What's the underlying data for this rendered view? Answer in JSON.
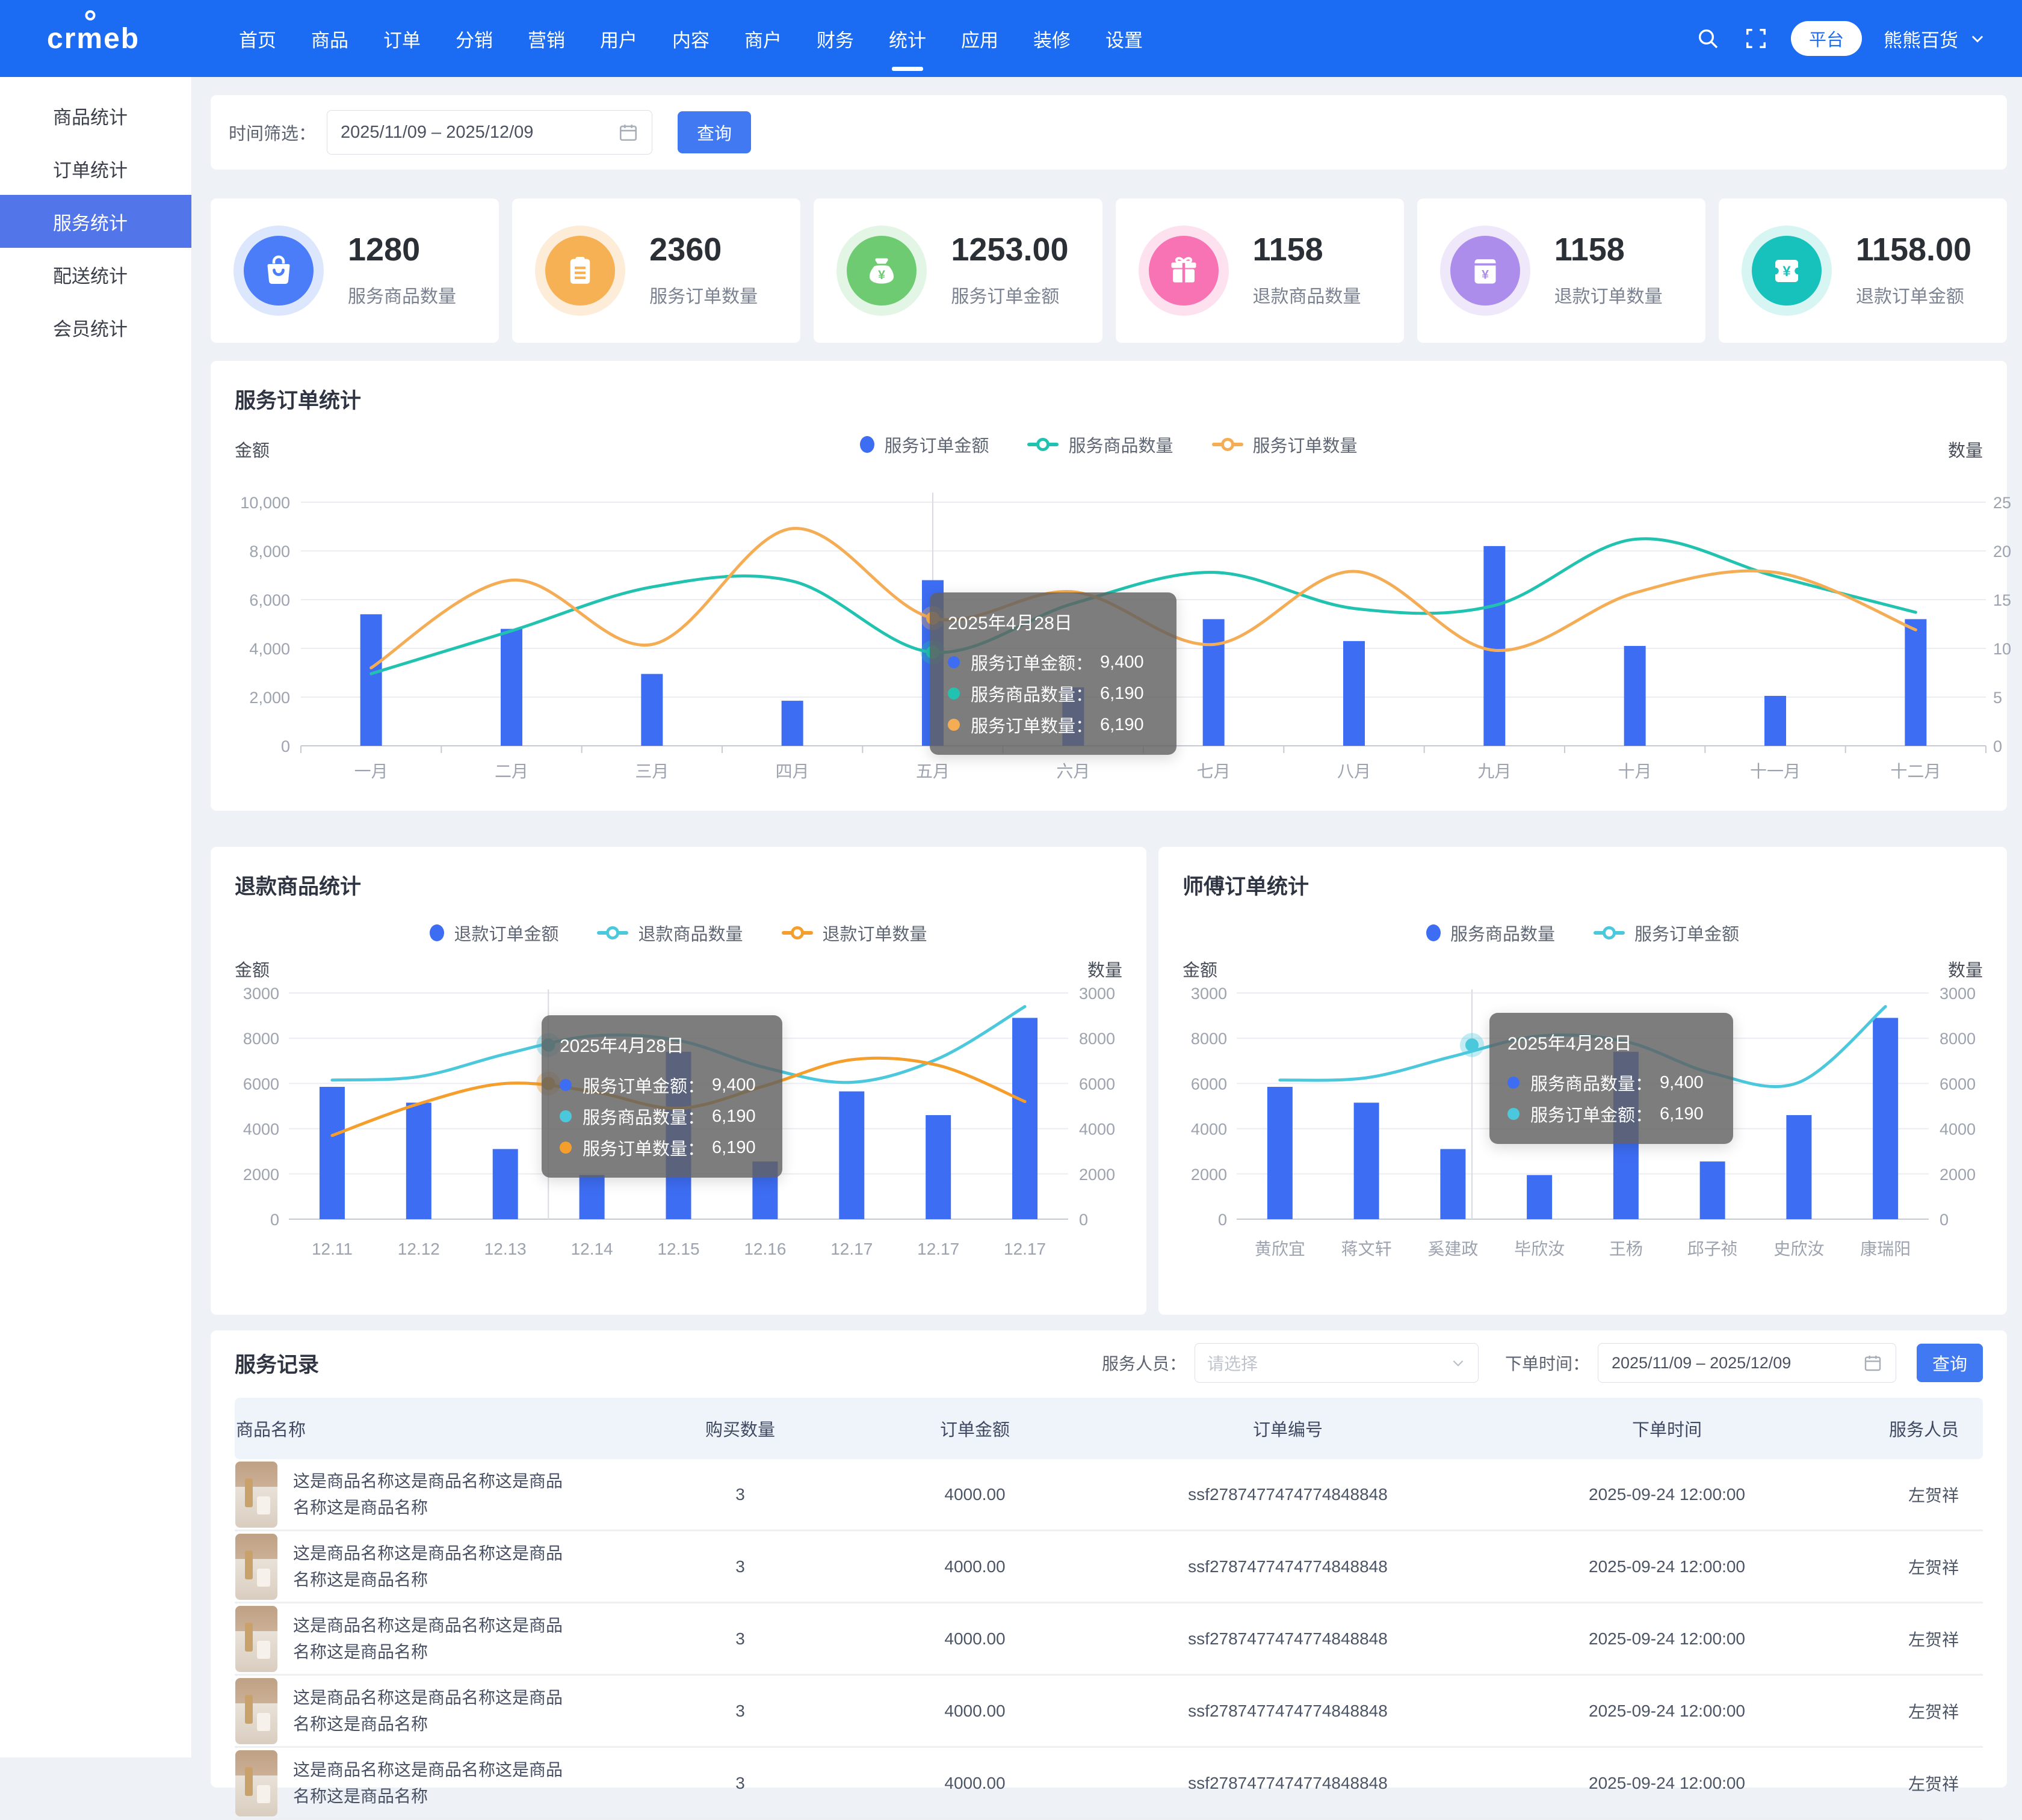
{
  "navbar": {
    "logo": "crmeb",
    "menu": [
      "首页",
      "商品",
      "订单",
      "分销",
      "营销",
      "用户",
      "内容",
      "商户",
      "财务",
      "统计",
      "应用",
      "装修",
      "设置"
    ],
    "active_item": "统计",
    "platform_badge": "平台",
    "account_name": "熊熊百货"
  },
  "sidebar": {
    "items": [
      "商品统计",
      "订单统计",
      "服务统计",
      "配送统计",
      "会员统计"
    ],
    "active_item": "服务统计"
  },
  "filter_bar": {
    "label": "时间筛选：",
    "date_range": "2025/11/09 – 2025/12/09",
    "query_label": "查询"
  },
  "stat_cards": [
    {
      "value": "1280",
      "label": "服务商品数量",
      "icon": "bag-icon",
      "color": "#4A7DF7",
      "ring": "#DCE7FD"
    },
    {
      "value": "2360",
      "label": "服务订单数量",
      "icon": "clipboard-icon",
      "color": "#F7B155",
      "ring": "#FDEDD8"
    },
    {
      "value": "1253.00",
      "label": "服务订单金额",
      "icon": "money-bag-icon",
      "color": "#6FCB72",
      "ring": "#E3F5E4"
    },
    {
      "value": "1158",
      "label": "退款商品数量",
      "icon": "gift-icon",
      "color": "#F773B4",
      "ring": "#FDE1EF"
    },
    {
      "value": "1158",
      "label": "退款订单数量",
      "icon": "receipt-icon",
      "color": "#AC8DEB",
      "ring": "#EFE8FB"
    },
    {
      "value": "1158.00",
      "label": "退款订单金额",
      "icon": "yen-ticket-icon",
      "color": "#17C2BC",
      "ring": "#D7F5F3"
    }
  ],
  "chart_data": [
    {
      "type": "bar",
      "title": "服务订单统计",
      "ylabel_left": "金额",
      "ylabel_right": "数量",
      "left_ticks": [
        "0",
        "2,000",
        "4,000",
        "6,000",
        "8,000",
        "10,000"
      ],
      "right_ticks": [
        "0",
        "5",
        "10",
        "15",
        "20",
        "25"
      ],
      "left_max": 10000,
      "right_max": 25,
      "categories": [
        "一月",
        "二月",
        "三月",
        "四月",
        "五月",
        "六月",
        "七月",
        "八月",
        "九月",
        "十月",
        "十一月",
        "十二月"
      ],
      "series": [
        {
          "name": "服务订单金额",
          "type": "bar",
          "axis": "left",
          "color": "#3D6DF3",
          "values": [
            5400,
            4800,
            2950,
            1850,
            6800,
            2400,
            5200,
            4300,
            8200,
            4100,
            2050,
            5200
          ]
        },
        {
          "name": "服务商品数量",
          "type": "line",
          "axis": "right",
          "color": "#21C3B0",
          "values": [
            7.4,
            11.8,
            16.3,
            16.9,
            9.6,
            14.6,
            17.8,
            14.1,
            14.4,
            21.2,
            17.4,
            13.7
          ]
        },
        {
          "name": "服务订单数量",
          "type": "line",
          "axis": "right",
          "color": "#F5AD55",
          "values": [
            8,
            17,
            10.4,
            22.3,
            13.1,
            15.8,
            10.4,
            17.9,
            9.8,
            15.7,
            17.8,
            11.9
          ]
        }
      ],
      "pointer": {
        "frac": 0.375,
        "markers": [
          {
            "color": "#F5AD55",
            "axis": "right",
            "value": 13.1
          },
          {
            "color": "#21C3B0",
            "axis": "right",
            "value": 9.6
          }
        ]
      },
      "tooltip": {
        "title": "2025年4月28日",
        "rows": [
          {
            "color": "#3D6DF3",
            "label": "服务订单金额",
            "value": "9,400"
          },
          {
            "color": "#21C3B0",
            "label": "服务商品数量",
            "value": "6,190"
          },
          {
            "color": "#F5AD55",
            "label": "服务订单数量",
            "value": "6,190"
          }
        ]
      }
    },
    {
      "type": "bar",
      "title": "退款商品统计",
      "ylabel_left": "金额",
      "ylabel_right": "数量",
      "left_ticks": [
        "0",
        "2000",
        "4000",
        "6000",
        "8000",
        "3000"
      ],
      "right_ticks": [
        "0",
        "2000",
        "4000",
        "6000",
        "8000",
        "3000"
      ],
      "left_max": 10000,
      "right_max": 10000,
      "categories": [
        "12.11",
        "12.12",
        "12.13",
        "12.14",
        "12.15",
        "12.16",
        "12.17",
        "12.17",
        "12.17"
      ],
      "series": [
        {
          "name": "退款订单金额",
          "type": "bar",
          "axis": "left",
          "color": "#3D6DF3",
          "values": [
            5850,
            5150,
            3100,
            1950,
            7400,
            2550,
            5650,
            4600,
            8900
          ]
        },
        {
          "name": "退款商品数量",
          "type": "line",
          "axis": "left",
          "color": "#4BC8DC",
          "values": [
            6150,
            6300,
            7300,
            8100,
            7900,
            6700,
            6050,
            7100,
            9400
          ]
        },
        {
          "name": "退款订单数量",
          "type": "line",
          "axis": "left",
          "color": "#F59E2B",
          "values": [
            3700,
            5100,
            6000,
            5650,
            4900,
            5900,
            7050,
            6800,
            5200
          ]
        }
      ],
      "pointer": {
        "frac": 0.333,
        "markers": [
          {
            "color": "#4BC8DC",
            "axis": "left",
            "value": 7700
          },
          {
            "color": "#F59E2B",
            "axis": "left",
            "value": 6000
          }
        ]
      },
      "tooltip": {
        "title": "2025年4月28日",
        "rows": [
          {
            "color": "#3D6DF3",
            "label": "服务订单金额",
            "value": "9,400"
          },
          {
            "color": "#4BC8DC",
            "label": "服务商品数量",
            "value": "6,190"
          },
          {
            "color": "#F59E2B",
            "label": "服务订单数量",
            "value": "6,190"
          }
        ]
      }
    },
    {
      "type": "bar",
      "title": "师傅订单统计",
      "ylabel_left": "金额",
      "ylabel_right": "数量",
      "left_ticks": [
        "0",
        "2000",
        "4000",
        "6000",
        "8000",
        "3000"
      ],
      "right_ticks": [
        "0",
        "2000",
        "4000",
        "6000",
        "8000",
        "3000"
      ],
      "left_max": 10000,
      "right_max": 10000,
      "categories": [
        "黄欣宜",
        "蒋文轩",
        "奚建政",
        "毕欣汝",
        "王杨",
        "邱子祯",
        "史欣汝",
        "康瑞阳"
      ],
      "series": [
        {
          "name": "服务商品数量",
          "type": "bar",
          "axis": "left",
          "color": "#3D6DF3",
          "values": [
            5850,
            5150,
            3100,
            1950,
            7400,
            2550,
            4600,
            8900
          ]
        },
        {
          "name": "服务订单金额",
          "type": "line",
          "axis": "left",
          "color": "#4BC8DC",
          "values": [
            6150,
            6250,
            7200,
            8100,
            7850,
            6450,
            6050,
            9400
          ]
        }
      ],
      "pointer": {
        "frac": 0.34,
        "markers": [
          {
            "color": "#4BC8DC",
            "axis": "left",
            "value": 7700
          }
        ]
      },
      "tooltip": {
        "title": "2025年4月28日",
        "rows": [
          {
            "color": "#3D6DF3",
            "label": "服务商品数量",
            "value": "9,400"
          },
          {
            "color": "#4BC8DC",
            "label": "服务订单金额",
            "value": "6,190"
          }
        ]
      }
    }
  ],
  "records": {
    "title": "服务记录",
    "staff_label": "服务人员：",
    "staff_placeholder": "请选择",
    "time_label": "下单时间：",
    "date_range": "2025/11/09 – 2025/12/09",
    "query_label": "查询",
    "columns": [
      "商品名称",
      "购买数量",
      "订单金额",
      "订单编号",
      "下单时间",
      "服务人员"
    ],
    "rows": [
      {
        "name": "这是商品名称这是商品名称这是商品名称这是商品名称",
        "qty": "3",
        "amount": "4000.00",
        "order_no": "ssf2787477474774848848",
        "time": "2025-09-24 12:00:00",
        "staff": "左贺祥"
      },
      {
        "name": "这是商品名称这是商品名称这是商品名称这是商品名称",
        "qty": "3",
        "amount": "4000.00",
        "order_no": "ssf2787477474774848848",
        "time": "2025-09-24 12:00:00",
        "staff": "左贺祥"
      },
      {
        "name": "这是商品名称这是商品名称这是商品名称这是商品名称",
        "qty": "3",
        "amount": "4000.00",
        "order_no": "ssf2787477474774848848",
        "time": "2025-09-24 12:00:00",
        "staff": "左贺祥"
      },
      {
        "name": "这是商品名称这是商品名称这是商品名称这是商品名称",
        "qty": "3",
        "amount": "4000.00",
        "order_no": "ssf2787477474774848848",
        "time": "2025-09-24 12:00:00",
        "staff": "左贺祥"
      },
      {
        "name": "这是商品名称这是商品名称这是商品名称这是商品名称",
        "qty": "3",
        "amount": "4000.00",
        "order_no": "ssf2787477474774848848",
        "time": "2025-09-24 12:00:00",
        "staff": "左贺祥"
      }
    ]
  }
}
